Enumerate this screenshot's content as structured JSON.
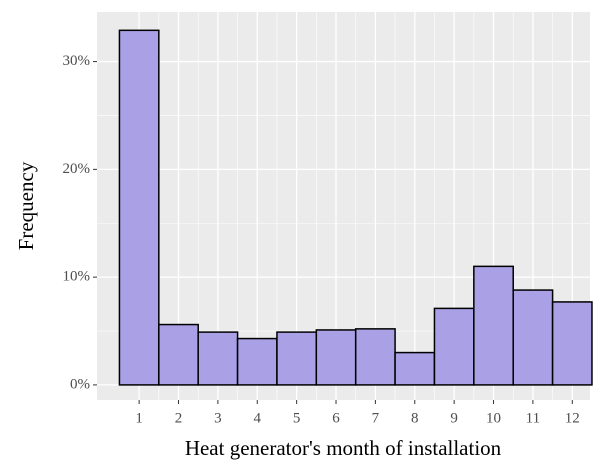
{
  "chart_data": {
    "type": "histogram",
    "x_label": "Heat generator's month of installation",
    "y_label": "Frequency",
    "bins": [
      0.5,
      1.5,
      2.5,
      3.5,
      4.5,
      5.5,
      6.5,
      7.5,
      8.5,
      9.5,
      10.5,
      11.5,
      12.5
    ],
    "values": [
      32.9,
      5.6,
      4.9,
      4.3,
      4.9,
      5.1,
      5.2,
      3.0,
      7.1,
      11.0,
      8.8,
      7.7
    ],
    "color": "#aaa0e6",
    "edge_color": "#000000",
    "xlim": [
      -0.07,
      12.45
    ],
    "xticks": [
      1,
      2,
      3,
      4,
      5,
      6,
      7,
      8,
      9,
      10,
      11,
      12
    ],
    "ylim": [
      -1.4,
      34.6
    ],
    "yticks": [
      {
        "value": 0,
        "label": "0%"
      },
      {
        "value": 10,
        "label": "10%"
      },
      {
        "value": 20,
        "label": "20%"
      },
      {
        "value": 30,
        "label": "30%"
      }
    ],
    "grid": true
  }
}
